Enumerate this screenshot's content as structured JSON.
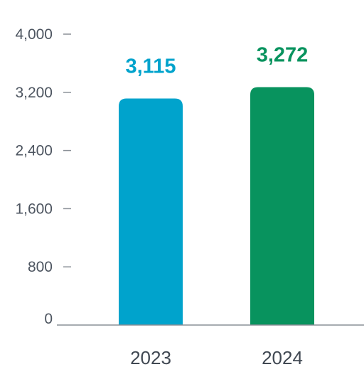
{
  "chart_data": {
    "type": "bar",
    "categories": [
      "2023",
      "2024"
    ],
    "values": [
      3115,
      3272
    ],
    "value_labels": [
      "3,115",
      "3,272"
    ],
    "colors": [
      "#00a3cc",
      "#08935e"
    ],
    "ylim": [
      0,
      4000
    ],
    "yticks": [
      0,
      800,
      1600,
      2400,
      3200,
      4000
    ],
    "ytick_labels": [
      "0",
      "800",
      "1,600",
      "2,400",
      "3,200",
      "4,000"
    ],
    "grid": false,
    "legend": "none",
    "axis_color": "#8a9097"
  }
}
